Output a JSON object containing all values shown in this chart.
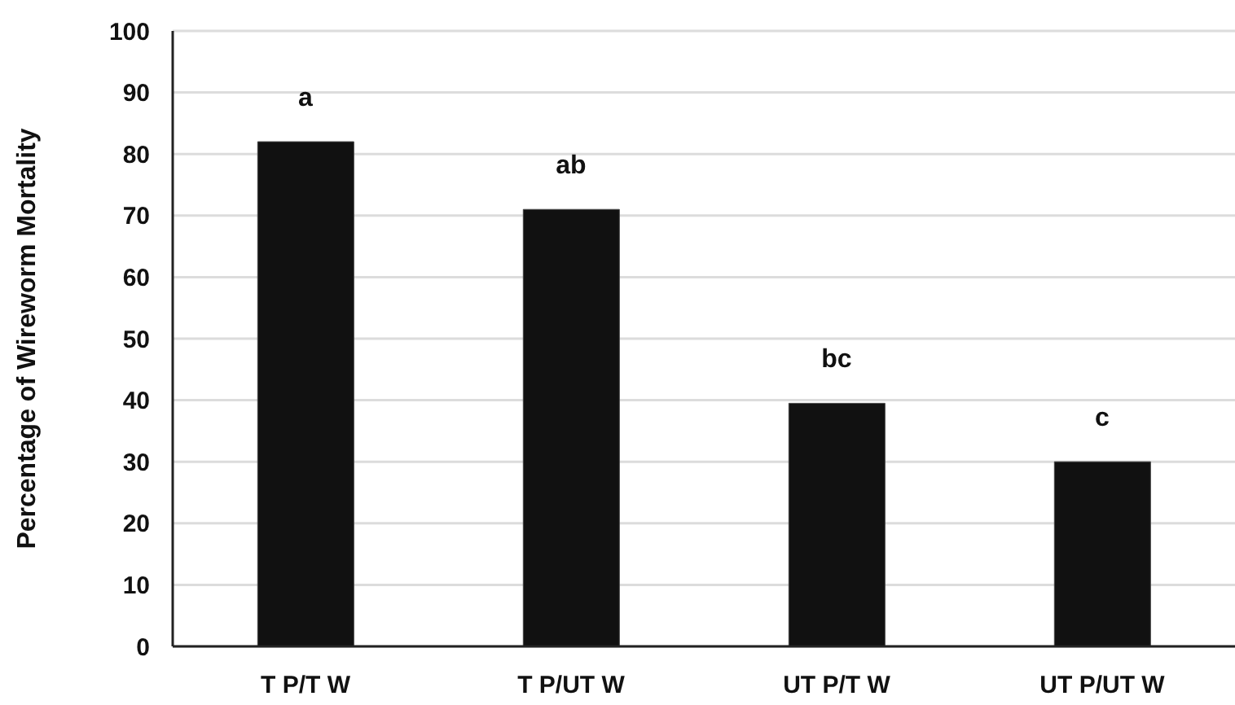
{
  "chart_data": {
    "type": "bar",
    "ylabel": "Percentage of Wireworm Mortality",
    "categories": [
      "T P/T W",
      "T P/UT W",
      "UT P/T W",
      "UT P/UT W"
    ],
    "values": [
      82,
      71,
      39.5,
      30
    ],
    "color": "#111111",
    "ylim": [
      0,
      100
    ],
    "yticks": [
      0,
      10,
      20,
      30,
      40,
      50,
      60,
      70,
      80,
      90,
      100
    ],
    "grid": "y",
    "annotations": [
      "a",
      "ab",
      "bc",
      "c"
    ]
  }
}
